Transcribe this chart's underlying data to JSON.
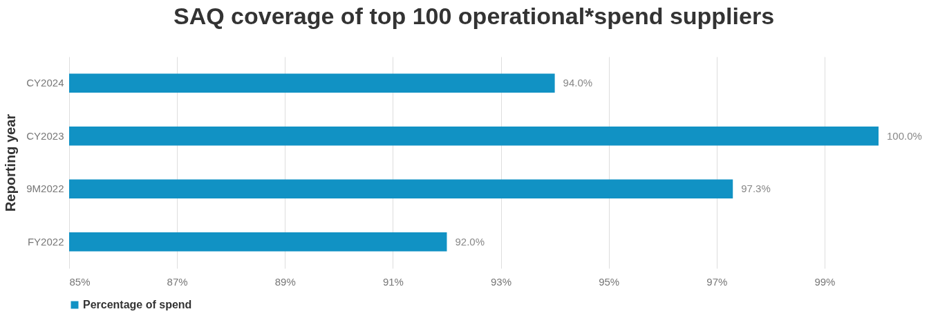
{
  "chart_data": {
    "type": "bar",
    "orientation": "horizontal",
    "title": "SAQ coverage of top 100 operational*spend suppliers",
    "ylabel": "Reporting year",
    "categories": [
      "CY2024",
      "CY2023",
      "9M2022",
      "FY2022"
    ],
    "series": [
      {
        "name": "Percentage of spend",
        "color": "#1192c4",
        "values": [
          94.0,
          100.0,
          97.3,
          92.0
        ],
        "value_labels": [
          "94.0%",
          "100.0%",
          "97.3%",
          "92.0%"
        ]
      }
    ],
    "xlim": [
      85,
      100
    ],
    "xticks": [
      {
        "value": 85,
        "label": "85%"
      },
      {
        "value": 87,
        "label": "87%"
      },
      {
        "value": 89,
        "label": "89%"
      },
      {
        "value": 91,
        "label": "91%"
      },
      {
        "value": 93,
        "label": "93%"
      },
      {
        "value": 95,
        "label": "95%"
      },
      {
        "value": 97,
        "label": "97%"
      },
      {
        "value": 99,
        "label": "99%"
      }
    ],
    "grid": "x",
    "legend": "bottom"
  }
}
